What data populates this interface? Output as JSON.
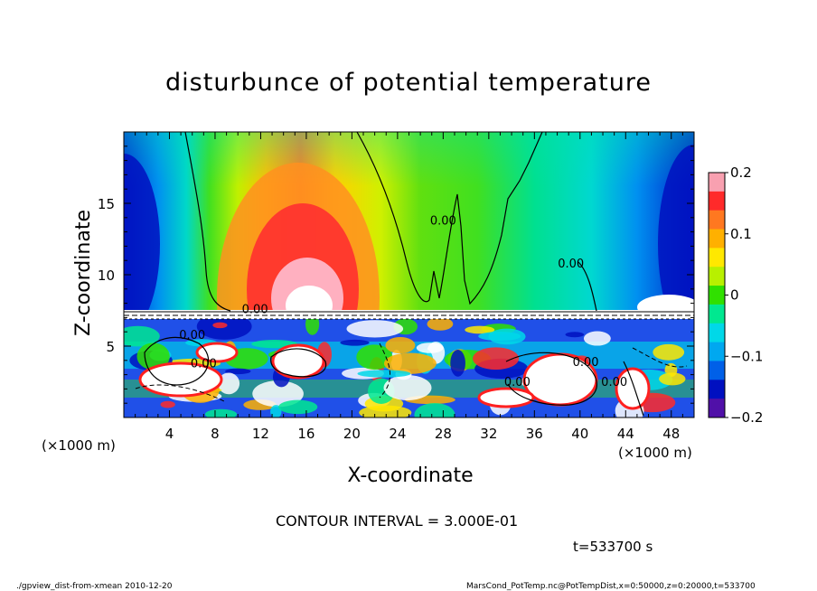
{
  "chart_data": {
    "type": "heatmap",
    "title": "disturbunce of potential temperature",
    "xlabel": "X-coordinate",
    "ylabel": "Z-coordinate",
    "x_unit_left": "(×1000 m)",
    "x_unit_right": "(×1000 m)",
    "xlim": [
      0,
      50
    ],
    "ylim": [
      0,
      20
    ],
    "x_ticks": [
      4,
      8,
      12,
      16,
      20,
      24,
      28,
      32,
      36,
      40,
      44,
      48
    ],
    "y_ticks": [
      5,
      10,
      15
    ],
    "colorbar": {
      "min": -0.2,
      "max": 0.2,
      "ticks": [
        {
          "value": 0.2,
          "label": "0.2"
        },
        {
          "value": 0.1,
          "label": "0.1"
        },
        {
          "value": 0,
          "label": "0"
        },
        {
          "value": -0.1,
          "label": "−0.1"
        },
        {
          "value": -0.2,
          "label": "−0.2"
        }
      ],
      "colors": [
        "#f8a0b0",
        "#ff2a2a",
        "#ff7820",
        "#ffb000",
        "#ffe800",
        "#b8f000",
        "#30e000",
        "#00e890",
        "#00d8e8",
        "#00a8f0",
        "#0060e8",
        "#0010c0",
        "#5010a8"
      ]
    },
    "contour_labels": [
      {
        "x": 11.5,
        "z": 7.3,
        "text": "0.00"
      },
      {
        "x": 6.0,
        "z": 5.5,
        "text": "0.00"
      },
      {
        "x": 7.0,
        "z": 3.5,
        "text": "0.00"
      },
      {
        "x": 28.0,
        "z": 13.5,
        "text": "0.00"
      },
      {
        "x": 39.2,
        "z": 10.5,
        "text": "0.00"
      },
      {
        "x": 40.5,
        "z": 3.6,
        "text": "0.00"
      },
      {
        "x": 43.0,
        "z": 2.2,
        "text": "0.00"
      },
      {
        "x": 34.5,
        "z": 2.2,
        "text": "0.00"
      }
    ],
    "contour_interval": "CONTOUR INTERVAL = 3.000E-01",
    "time_label": "t=533700 s"
  },
  "footer": {
    "left": "./gpview_dist-from-xmean  2010-12-20",
    "right": "MarsCond_PotTemp.nc@PotTempDist,x=0:50000,z=0:20000,t=533700"
  }
}
